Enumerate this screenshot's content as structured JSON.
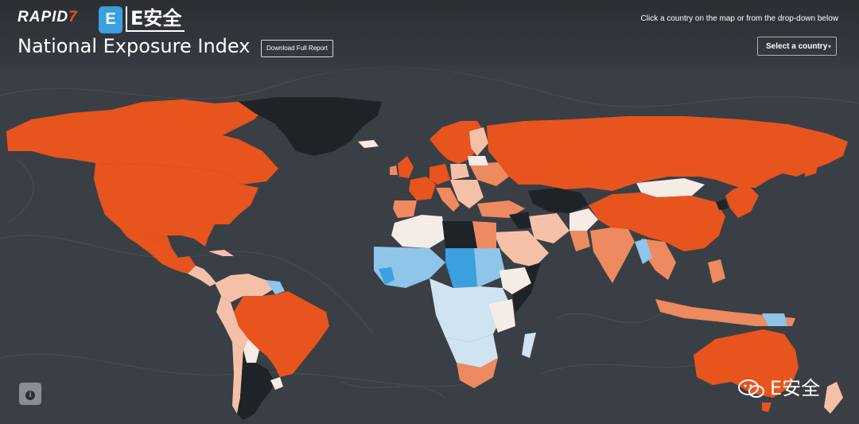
{
  "header": {
    "brand_rapid": "RAPID",
    "brand_seven": "7",
    "badge_e": "E",
    "badge_text": "E安全",
    "title": "National Exposure Index",
    "download_label": "Download Full Report",
    "hint": "Click a country on the map or from the drop-down below",
    "select_label": "Select a country",
    "select_caret": "▾"
  },
  "info_button": {
    "glyph": "i"
  },
  "watermark": {
    "text": "E安全"
  },
  "colors": {
    "background": "#3a3f45",
    "ocean_contour": "#454a50",
    "high": "#e8541e",
    "mid": "#ee8a60",
    "low": "#f4c1a8",
    "neutral": "#f6ece6",
    "light_blue": "#cfe3f0",
    "blue": "#8ec5e8",
    "deep_blue": "#3aa0e0",
    "no_data": "#1e2327"
  },
  "legend_categories": [
    "high",
    "mid",
    "low",
    "neutral",
    "light_blue",
    "blue",
    "deep_blue",
    "no_data"
  ]
}
